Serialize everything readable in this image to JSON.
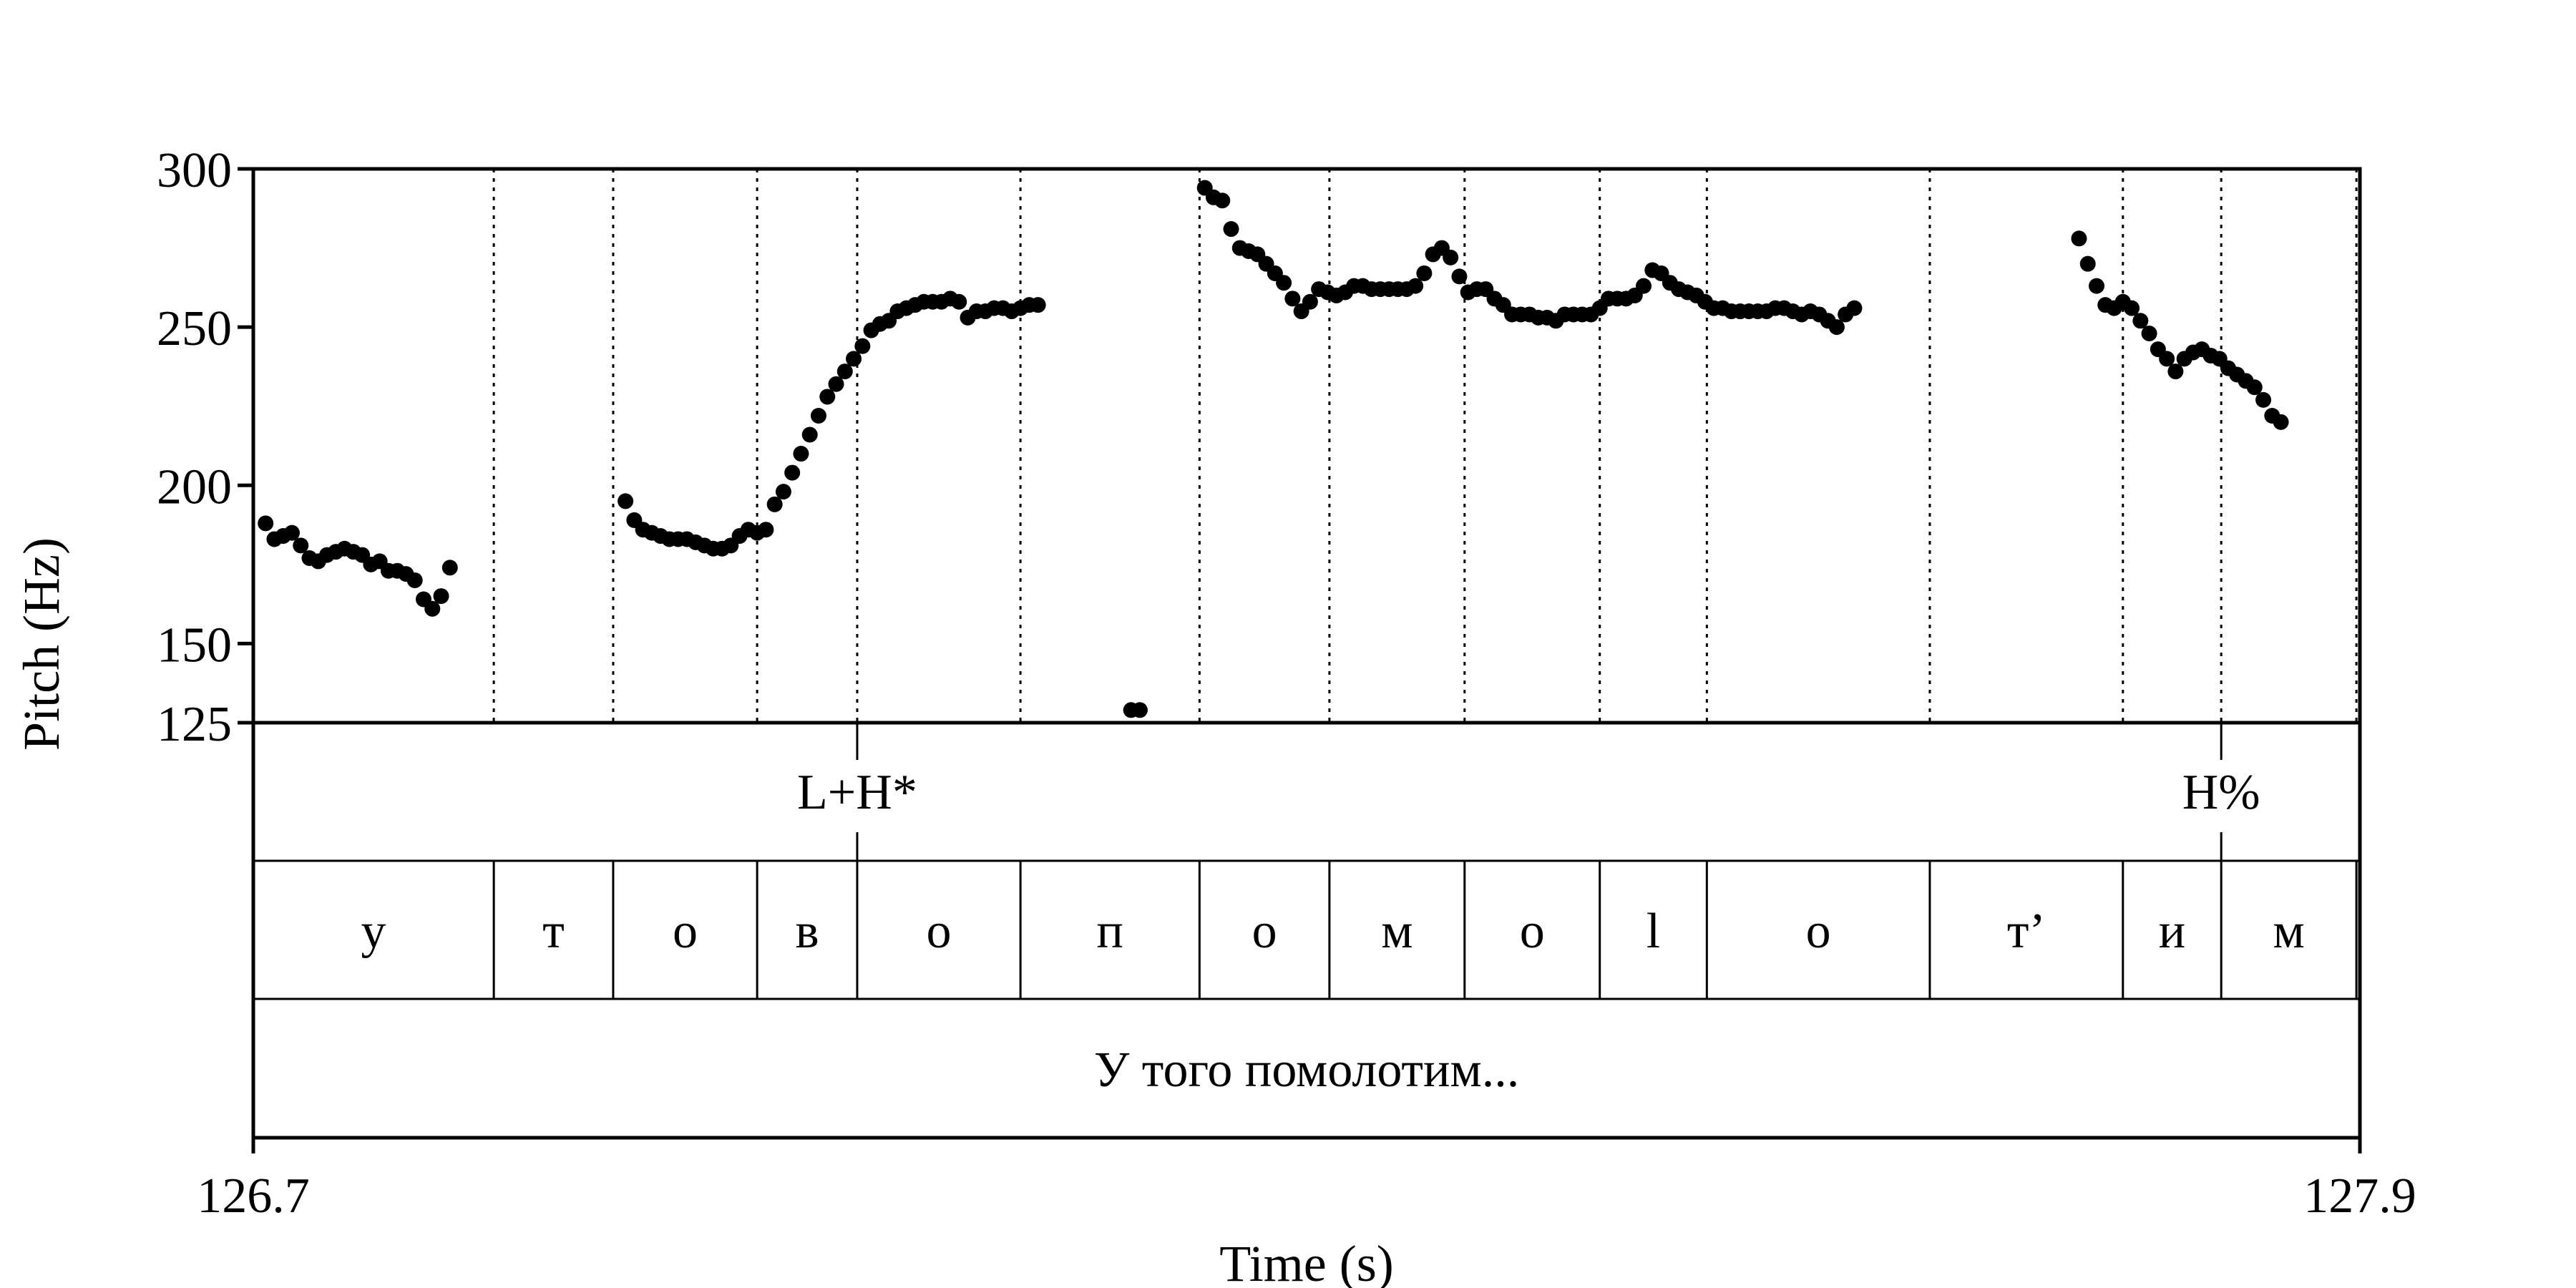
{
  "chart_data": {
    "type": "scatter",
    "xlabel": "Time (s)",
    "ylabel": "Pitch (Hz)",
    "xlim": [
      126.7,
      127.9
    ],
    "ylim": [
      125,
      300
    ],
    "x_ticks": [
      "126.7",
      "127.9"
    ],
    "y_ticks": [
      {
        "value": 125,
        "label": "125"
      },
      {
        "value": 150,
        "label": "150"
      },
      {
        "value": 200,
        "label": "200"
      },
      {
        "value": 250,
        "label": "250"
      },
      {
        "value": 300,
        "label": "300"
      }
    ],
    "pitch_points": [
      [
        126.707,
        188
      ],
      [
        126.712,
        183
      ],
      [
        126.717,
        184
      ],
      [
        126.722,
        185
      ],
      [
        126.727,
        181
      ],
      [
        126.732,
        177
      ],
      [
        126.737,
        176
      ],
      [
        126.742,
        178
      ],
      [
        126.747,
        179
      ],
      [
        126.752,
        180
      ],
      [
        126.757,
        179
      ],
      [
        126.762,
        178
      ],
      [
        126.767,
        175
      ],
      [
        126.772,
        176
      ],
      [
        126.777,
        173
      ],
      [
        126.782,
        173
      ],
      [
        126.787,
        172
      ],
      [
        126.792,
        170
      ],
      [
        126.797,
        164
      ],
      [
        126.802,
        161
      ],
      [
        126.807,
        165
      ],
      [
        126.812,
        174
      ],
      [
        126.912,
        195
      ],
      [
        126.917,
        189
      ],
      [
        126.922,
        186
      ],
      [
        126.927,
        185
      ],
      [
        126.932,
        184
      ],
      [
        126.937,
        183
      ],
      [
        126.942,
        183
      ],
      [
        126.947,
        183
      ],
      [
        126.952,
        182
      ],
      [
        126.957,
        181
      ],
      [
        126.962,
        180
      ],
      [
        126.967,
        180
      ],
      [
        126.972,
        181
      ],
      [
        126.977,
        184
      ],
      [
        126.982,
        186
      ],
      [
        126.987,
        185
      ],
      [
        126.992,
        186
      ],
      [
        126.997,
        194
      ],
      [
        127.002,
        198
      ],
      [
        127.007,
        204
      ],
      [
        127.012,
        210
      ],
      [
        127.017,
        216
      ],
      [
        127.022,
        222
      ],
      [
        127.027,
        228
      ],
      [
        127.032,
        232
      ],
      [
        127.037,
        236
      ],
      [
        127.042,
        240
      ],
      [
        127.047,
        244
      ],
      [
        127.052,
        249
      ],
      [
        127.057,
        251
      ],
      [
        127.062,
        252
      ],
      [
        127.067,
        255
      ],
      [
        127.072,
        256
      ],
      [
        127.077,
        257
      ],
      [
        127.082,
        258
      ],
      [
        127.087,
        258
      ],
      [
        127.092,
        258
      ],
      [
        127.097,
        259
      ],
      [
        127.102,
        258
      ],
      [
        127.107,
        253
      ],
      [
        127.112,
        255
      ],
      [
        127.117,
        255
      ],
      [
        127.122,
        256
      ],
      [
        127.127,
        256
      ],
      [
        127.132,
        255
      ],
      [
        127.137,
        256
      ],
      [
        127.142,
        257
      ],
      [
        127.147,
        257
      ],
      [
        127.2,
        129
      ],
      [
        127.205,
        129
      ],
      [
        127.242,
        294
      ],
      [
        127.247,
        291
      ],
      [
        127.252,
        290
      ],
      [
        127.257,
        281
      ],
      [
        127.262,
        275
      ],
      [
        127.267,
        274
      ],
      [
        127.272,
        273
      ],
      [
        127.277,
        270
      ],
      [
        127.282,
        267
      ],
      [
        127.287,
        264
      ],
      [
        127.292,
        259
      ],
      [
        127.297,
        255
      ],
      [
        127.302,
        258
      ],
      [
        127.307,
        262
      ],
      [
        127.312,
        261
      ],
      [
        127.317,
        260
      ],
      [
        127.322,
        261
      ],
      [
        127.327,
        263
      ],
      [
        127.332,
        263
      ],
      [
        127.337,
        262
      ],
      [
        127.342,
        262
      ],
      [
        127.347,
        262
      ],
      [
        127.352,
        262
      ],
      [
        127.357,
        262
      ],
      [
        127.362,
        263
      ],
      [
        127.367,
        267
      ],
      [
        127.372,
        273
      ],
      [
        127.377,
        275
      ],
      [
        127.382,
        272
      ],
      [
        127.387,
        266
      ],
      [
        127.392,
        261
      ],
      [
        127.397,
        262
      ],
      [
        127.402,
        262
      ],
      [
        127.407,
        259
      ],
      [
        127.412,
        257
      ],
      [
        127.417,
        254
      ],
      [
        127.422,
        254
      ],
      [
        127.427,
        254
      ],
      [
        127.432,
        253
      ],
      [
        127.437,
        253
      ],
      [
        127.442,
        252
      ],
      [
        127.447,
        254
      ],
      [
        127.452,
        254
      ],
      [
        127.457,
        254
      ],
      [
        127.462,
        254
      ],
      [
        127.467,
        256
      ],
      [
        127.472,
        259
      ],
      [
        127.477,
        259
      ],
      [
        127.482,
        259
      ],
      [
        127.487,
        260
      ],
      [
        127.492,
        263
      ],
      [
        127.497,
        268
      ],
      [
        127.502,
        267
      ],
      [
        127.507,
        264
      ],
      [
        127.512,
        262
      ],
      [
        127.517,
        261
      ],
      [
        127.522,
        260
      ],
      [
        127.527,
        258
      ],
      [
        127.532,
        256
      ],
      [
        127.537,
        256
      ],
      [
        127.542,
        255
      ],
      [
        127.547,
        255
      ],
      [
        127.552,
        255
      ],
      [
        127.557,
        255
      ],
      [
        127.562,
        255
      ],
      [
        127.567,
        256
      ],
      [
        127.572,
        256
      ],
      [
        127.577,
        255
      ],
      [
        127.582,
        254
      ],
      [
        127.587,
        255
      ],
      [
        127.592,
        254
      ],
      [
        127.597,
        252
      ],
      [
        127.602,
        250
      ],
      [
        127.607,
        254
      ],
      [
        127.612,
        256
      ],
      [
        127.74,
        278
      ],
      [
        127.745,
        270
      ],
      [
        127.75,
        263
      ],
      [
        127.755,
        257
      ],
      [
        127.76,
        256
      ],
      [
        127.765,
        258
      ],
      [
        127.77,
        256
      ],
      [
        127.775,
        252
      ],
      [
        127.78,
        248
      ],
      [
        127.785,
        243
      ],
      [
        127.79,
        240
      ],
      [
        127.795,
        236
      ],
      [
        127.8,
        240
      ],
      [
        127.805,
        242
      ],
      [
        127.81,
        243
      ],
      [
        127.815,
        241
      ],
      [
        127.82,
        240
      ],
      [
        127.825,
        237
      ],
      [
        127.83,
        235
      ],
      [
        127.835,
        233
      ],
      [
        127.84,
        231
      ],
      [
        127.845,
        227
      ],
      [
        127.85,
        222
      ],
      [
        127.855,
        220
      ]
    ],
    "segment_boundaries": [
      126.837,
      126.905,
      126.987,
      127.044,
      127.137,
      127.239,
      127.313,
      127.39,
      127.467,
      127.528,
      127.655,
      127.765,
      127.821,
      127.898
    ],
    "tones_tier": [
      {
        "time": 127.044,
        "label": "L+H*"
      },
      {
        "time": 127.821,
        "label": "H%"
      }
    ],
    "segments_tier": [
      "у",
      "т",
      "о",
      "в",
      "о",
      "п",
      "о",
      "м",
      "о",
      "l",
      "о",
      "т’",
      "и",
      "м"
    ],
    "sentence_tier": "У того помолотим...",
    "colors": {
      "points": "#000000",
      "lines": "#000000",
      "background": "#ffffff"
    }
  }
}
